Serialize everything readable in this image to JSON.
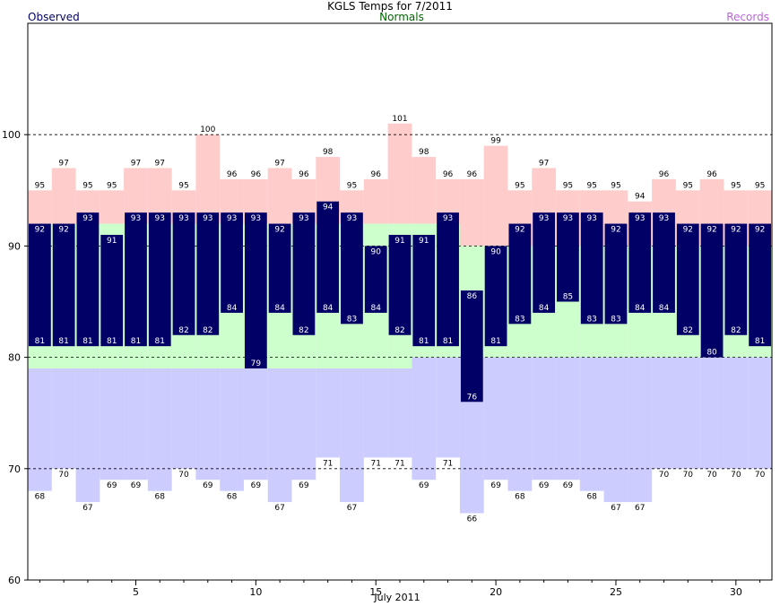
{
  "chart_data": {
    "type": "bar",
    "title": "KGLS Temps for 7/2011",
    "xlabel": "July 2011",
    "ylabel": "",
    "ylim": [
      60,
      110
    ],
    "xlim": [
      0.5,
      31.5
    ],
    "yticks": [
      60,
      70,
      80,
      90,
      100
    ],
    "xticks": [
      5,
      10,
      15,
      20,
      25,
      30
    ],
    "grid": "dashed horizontal at 70, 80, 90, 100",
    "legend": [
      {
        "name": "Observed",
        "placement": "top-left",
        "color": "#000066"
      },
      {
        "name": "Normals",
        "placement": "top-center",
        "color": "#006600"
      },
      {
        "name": "Records",
        "placement": "top-right",
        "color": "#bb66dd"
      }
    ],
    "colors": {
      "observed_bar": "#000066",
      "normal_band": "#ccffcc",
      "record_high": "#ffcccc",
      "record_low": "#ccccff",
      "grid": "#000000"
    },
    "days": [
      1,
      2,
      3,
      4,
      5,
      6,
      7,
      8,
      9,
      10,
      11,
      12,
      13,
      14,
      15,
      16,
      17,
      18,
      19,
      20,
      21,
      22,
      23,
      24,
      25,
      26,
      27,
      28,
      29,
      30,
      31
    ],
    "series": [
      {
        "name": "Observed High",
        "values": [
          92,
          92,
          93,
          91,
          93,
          93,
          93,
          93,
          93,
          93,
          92,
          93,
          94,
          93,
          90,
          91,
          91,
          93,
          86,
          90,
          92,
          93,
          93,
          93,
          92,
          93,
          93,
          92,
          92,
          92,
          92
        ]
      },
      {
        "name": "Observed Low",
        "values": [
          81,
          81,
          81,
          81,
          81,
          81,
          82,
          82,
          84,
          79,
          84,
          82,
          84,
          83,
          84,
          82,
          81,
          81,
          76,
          81,
          83,
          84,
          85,
          83,
          83,
          84,
          84,
          82,
          80,
          82,
          81
        ]
      },
      {
        "name": "Normal High",
        "values": [
          92,
          92,
          92,
          92,
          92,
          92,
          92,
          92,
          92,
          92,
          92,
          92,
          92,
          92,
          92,
          92,
          92,
          92,
          90,
          90,
          90,
          90,
          90,
          90,
          90,
          90,
          90,
          90,
          90,
          90,
          90
        ]
      },
      {
        "name": "Normal Low",
        "values": [
          79,
          79,
          79,
          79,
          79,
          79,
          79,
          79,
          79,
          79,
          79,
          79,
          79,
          79,
          79,
          79,
          80,
          80,
          80,
          80,
          80,
          80,
          80,
          80,
          80,
          80,
          80,
          80,
          80,
          80,
          80
        ]
      },
      {
        "name": "Record High",
        "values": [
          95,
          97,
          95,
          95,
          97,
          97,
          95,
          100,
          96,
          96,
          97,
          96,
          98,
          95,
          96,
          101,
          98,
          96,
          96,
          99,
          95,
          97,
          95,
          95,
          95,
          94,
          96,
          95,
          96,
          95,
          95
        ]
      },
      {
        "name": "Record Low",
        "values": [
          68,
          70,
          67,
          69,
          69,
          68,
          70,
          69,
          68,
          69,
          67,
          69,
          71,
          67,
          71,
          71,
          69,
          71,
          66,
          69,
          68,
          69,
          69,
          68,
          67,
          67,
          70,
          70,
          70,
          70,
          70
        ]
      }
    ]
  }
}
